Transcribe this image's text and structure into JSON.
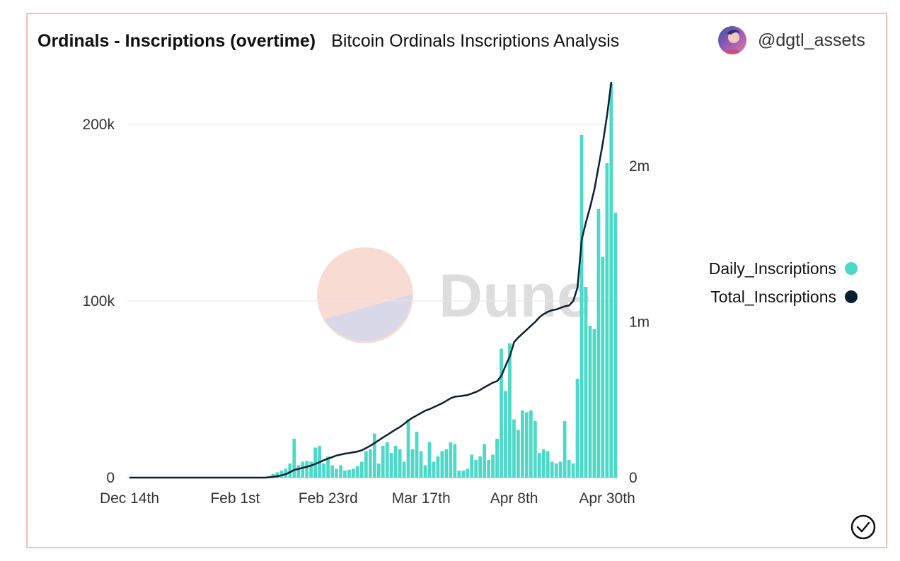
{
  "header": {
    "title": "Ordinals - Inscriptions (overtime)",
    "subtitle": "Bitcoin Ordinals Inscriptions Analysis",
    "author": "@dgtl_assets"
  },
  "watermark": "Dune",
  "colors": {
    "bars": "#4dd8c8",
    "line": "#0b1f33",
    "border": "#f3c0b6",
    "grid": "#e6e6e6"
  },
  "chart_data": {
    "type": "bar+line",
    "x_ticks": [
      "Dec 14th",
      "Feb 1st",
      "Feb 23rd",
      "Mar 17th",
      "Apr 8th",
      "Apr 30th"
    ],
    "x_tick_index": [
      0,
      25,
      47,
      69,
      91,
      113
    ],
    "y_left": {
      "ticks": [
        "0",
        "100k",
        "200k"
      ],
      "tick_values": [
        0,
        100000,
        200000
      ],
      "range": [
        0,
        224000
      ]
    },
    "y_right": {
      "ticks": [
        "0",
        "1m",
        "2m"
      ],
      "tick_values": [
        0,
        1000000,
        2000000
      ],
      "range": [
        0,
        2540000
      ]
    },
    "legend": [
      {
        "label": "Daily_Inscriptions",
        "color": "#4dd8c8"
      },
      {
        "label": "Total_Inscriptions",
        "color": "#0b1f33"
      }
    ],
    "series": [
      {
        "name": "Daily_Inscriptions",
        "type": "bar",
        "axis": "left",
        "values": [
          0,
          0,
          0,
          0,
          0,
          0,
          0,
          0,
          0,
          0,
          0,
          0,
          0,
          0,
          0,
          0,
          0,
          0,
          0,
          0,
          0,
          0,
          0,
          0,
          0,
          0,
          0,
          0,
          0,
          0,
          0,
          0,
          0,
          1000,
          2000,
          3000,
          4000,
          5000,
          8000,
          22000,
          7000,
          9000,
          9500,
          9000,
          17000,
          18000,
          8000,
          12000,
          7000,
          5000,
          7000,
          4000,
          4500,
          5000,
          6500,
          9000,
          15000,
          16000,
          25000,
          8000,
          18000,
          20000,
          14000,
          18000,
          16000,
          9000,
          33000,
          16000,
          26000,
          15000,
          7000,
          20000,
          9000,
          12000,
          15000,
          16000,
          20000,
          19000,
          4000,
          4000,
          5000,
          13000,
          10000,
          12000,
          19000,
          10000,
          13000,
          22000,
          73000,
          49000,
          76000,
          33000,
          27000,
          38000,
          37000,
          38000,
          32000,
          14000,
          16000,
          15000,
          9000,
          8000,
          9000,
          32000,
          10000,
          8000,
          56000,
          194000,
          108000,
          86000,
          84000,
          152000,
          125000,
          178000,
          223000,
          150000
        ]
      },
      {
        "name": "Total_Inscriptions",
        "type": "line",
        "axis": "right",
        "values": [
          0,
          0,
          0,
          0,
          0,
          0,
          0,
          0,
          0,
          0,
          0,
          0,
          0,
          0,
          0,
          0,
          0,
          0,
          0,
          0,
          0,
          0,
          0,
          0,
          0,
          0,
          0,
          0,
          0,
          0,
          0,
          0,
          0,
          2000,
          5000,
          9000,
          15000,
          22000,
          36000,
          50000,
          56000,
          63000,
          70000,
          78000,
          88000,
          100000,
          112000,
          122000,
          132000,
          142000,
          148000,
          154000,
          158000,
          163000,
          168000,
          176000,
          190000,
          205000,
          222000,
          240000,
          258000,
          275000,
          292000,
          310000,
          325000,
          345000,
          368000,
          385000,
          400000,
          415000,
          430000,
          440000,
          452000,
          465000,
          478000,
          493000,
          510000,
          520000,
          522000,
          526000,
          530000,
          540000,
          550000,
          564000,
          580000,
          595000,
          610000,
          620000,
          655000,
          720000,
          780000,
          870000,
          900000,
          925000,
          950000,
          975000,
          1000000,
          1030000,
          1050000,
          1065000,
          1075000,
          1080000,
          1090000,
          1100000,
          1105000,
          1135000,
          1220000,
          1530000,
          1640000,
          1740000,
          1850000,
          2000000,
          2150000,
          2330000,
          2540000
        ]
      }
    ]
  }
}
